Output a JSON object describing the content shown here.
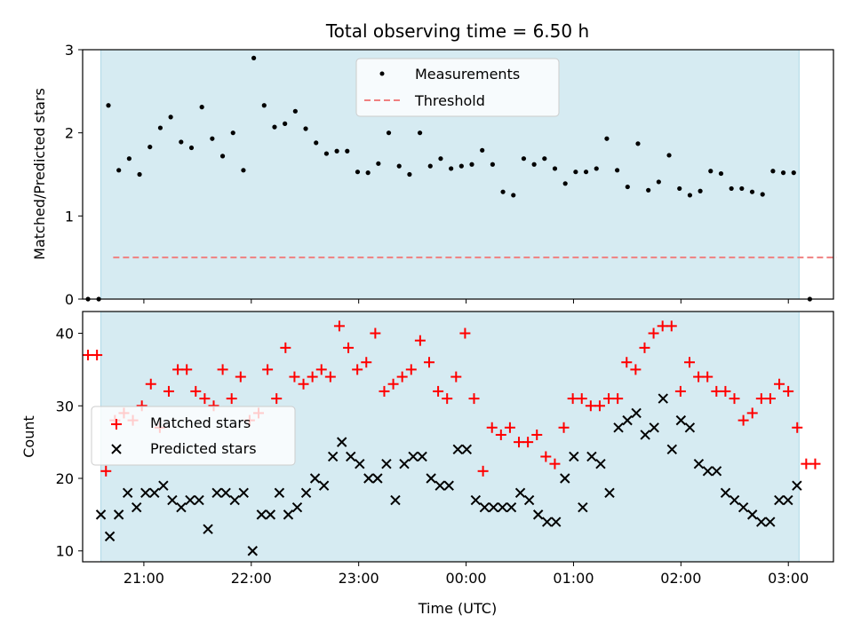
{
  "chart_data": [
    {
      "type": "scatter",
      "title": "Total observing time = 6.50 h",
      "ylabel": "Matched/Predicted stars",
      "xlabel": "",
      "xlim_hours": [
        20.43,
        27.42
      ],
      "ylim": [
        0,
        3
      ],
      "yticks": [
        "0",
        "1",
        "2",
        "3"
      ],
      "shaded_span_hours": [
        20.6,
        27.1
      ],
      "shade_color": "#add8e6",
      "legend": {
        "placement": "upper center",
        "entries": [
          "Measurements",
          "Threshold"
        ]
      },
      "threshold": {
        "name": "Threshold",
        "value": 0.5,
        "color": "#f08080",
        "style": "dashed"
      },
      "series": [
        {
          "name": "Measurements",
          "color": "#000000",
          "x_hours": [
            20.5,
            20.6,
            20.7,
            20.8,
            20.9,
            21.0,
            21.1,
            21.2,
            21.3,
            21.4,
            21.5,
            21.6,
            21.7,
            21.8,
            21.9,
            22.0,
            22.1,
            22.2,
            22.3,
            22.4,
            22.5,
            22.6,
            22.7,
            22.8,
            22.9,
            23.0,
            23.1,
            23.2,
            23.3,
            23.4,
            23.5,
            23.6,
            23.7,
            23.8,
            23.9,
            24.0,
            24.1,
            24.2,
            24.3,
            24.4,
            24.5,
            24.6,
            24.7,
            24.8,
            24.9,
            25.0,
            25.1,
            25.2,
            25.3,
            25.4,
            25.5,
            25.6,
            25.7,
            25.8,
            25.9,
            26.0,
            26.1,
            26.2,
            26.3,
            26.4,
            26.5,
            26.6,
            26.7,
            26.8,
            26.9,
            27.0,
            27.1,
            27.2
          ],
          "y": [
            0,
            2.33,
            1.55,
            1.69,
            1.5,
            1.83,
            2.06,
            2.19,
            1.89,
            1.82,
            2.31,
            1.93,
            1.72,
            2.0,
            1.55,
            2.9,
            2.33,
            2.07,
            2.11,
            2.26,
            2.05,
            1.88,
            1.75,
            1.78,
            1.78,
            1.53,
            1.52,
            1.63,
            2.0,
            1.6,
            1.5,
            2.0,
            1.6,
            1.69,
            1.57,
            1.6,
            1.62,
            1.79,
            1.62,
            1.29,
            1.25,
            1.69,
            1.62,
            1.69,
            1.57,
            1.39,
            1.53,
            1.53,
            1.57,
            1.93,
            1.55,
            1.35,
            1.87,
            1.31,
            1.41,
            1.73,
            1.33,
            1.25,
            1.3,
            1.54,
            1.51,
            1.33,
            1.33,
            1.29,
            1.26,
            1.54,
            1.52,
            1.52
          ]
        }
      ]
    },
    {
      "type": "scatter",
      "title": "",
      "ylabel": "Count",
      "xlabel": "Time (UTC)",
      "xlim_hours": [
        20.43,
        27.42
      ],
      "ylim": [
        8.5,
        43
      ],
      "yticks": [
        "10",
        "20",
        "30",
        "40"
      ],
      "xticks": [
        "21:00",
        "22:00",
        "23:00",
        "00:00",
        "01:00",
        "02:00",
        "03:00"
      ],
      "shaded_span_hours": [
        20.6,
        27.1
      ],
      "legend": {
        "placement": "center left",
        "entries": [
          "Matched stars",
          "Predicted stars"
        ]
      },
      "series": [
        {
          "name": "Matched stars",
          "marker": "plus",
          "color": "#ff0000",
          "y": [
            37,
            37,
            21,
            28,
            29,
            28,
            30,
            33,
            27,
            32,
            35,
            35,
            32,
            31,
            30,
            35,
            31,
            34,
            28,
            29,
            35,
            31,
            38,
            34,
            33,
            34,
            35,
            34,
            41,
            38,
            35,
            36,
            40,
            32,
            33,
            34,
            35,
            39,
            36,
            32,
            31,
            34,
            40,
            31,
            21,
            27,
            26,
            27,
            25,
            25,
            26,
            23,
            22,
            27,
            31,
            31,
            30,
            30,
            31,
            31,
            36,
            35,
            38,
            40,
            41,
            41,
            32,
            36,
            34,
            34,
            32,
            32,
            31,
            28,
            29,
            31,
            31,
            33,
            32,
            27,
            22,
            22
          ]
        },
        {
          "name": "Predicted stars",
          "marker": "x",
          "color": "#000000",
          "y": [
            15,
            12,
            15,
            18,
            16,
            18,
            18,
            19,
            17,
            16,
            17,
            17,
            13,
            18,
            18,
            17,
            18,
            10,
            15,
            15,
            18,
            15,
            16,
            18,
            20,
            19,
            23,
            25,
            23,
            22,
            20,
            20,
            22,
            17,
            22,
            23,
            23,
            20,
            19,
            19,
            24,
            24,
            17,
            16,
            16,
            16,
            16,
            18,
            17,
            15,
            14,
            14,
            20,
            23,
            16,
            23,
            22,
            18,
            27,
            28,
            29,
            26,
            27,
            31,
            24,
            28,
            27,
            22,
            21,
            21,
            18,
            17,
            16,
            15,
            14,
            14,
            17,
            17,
            19
          ]
        }
      ]
    }
  ]
}
